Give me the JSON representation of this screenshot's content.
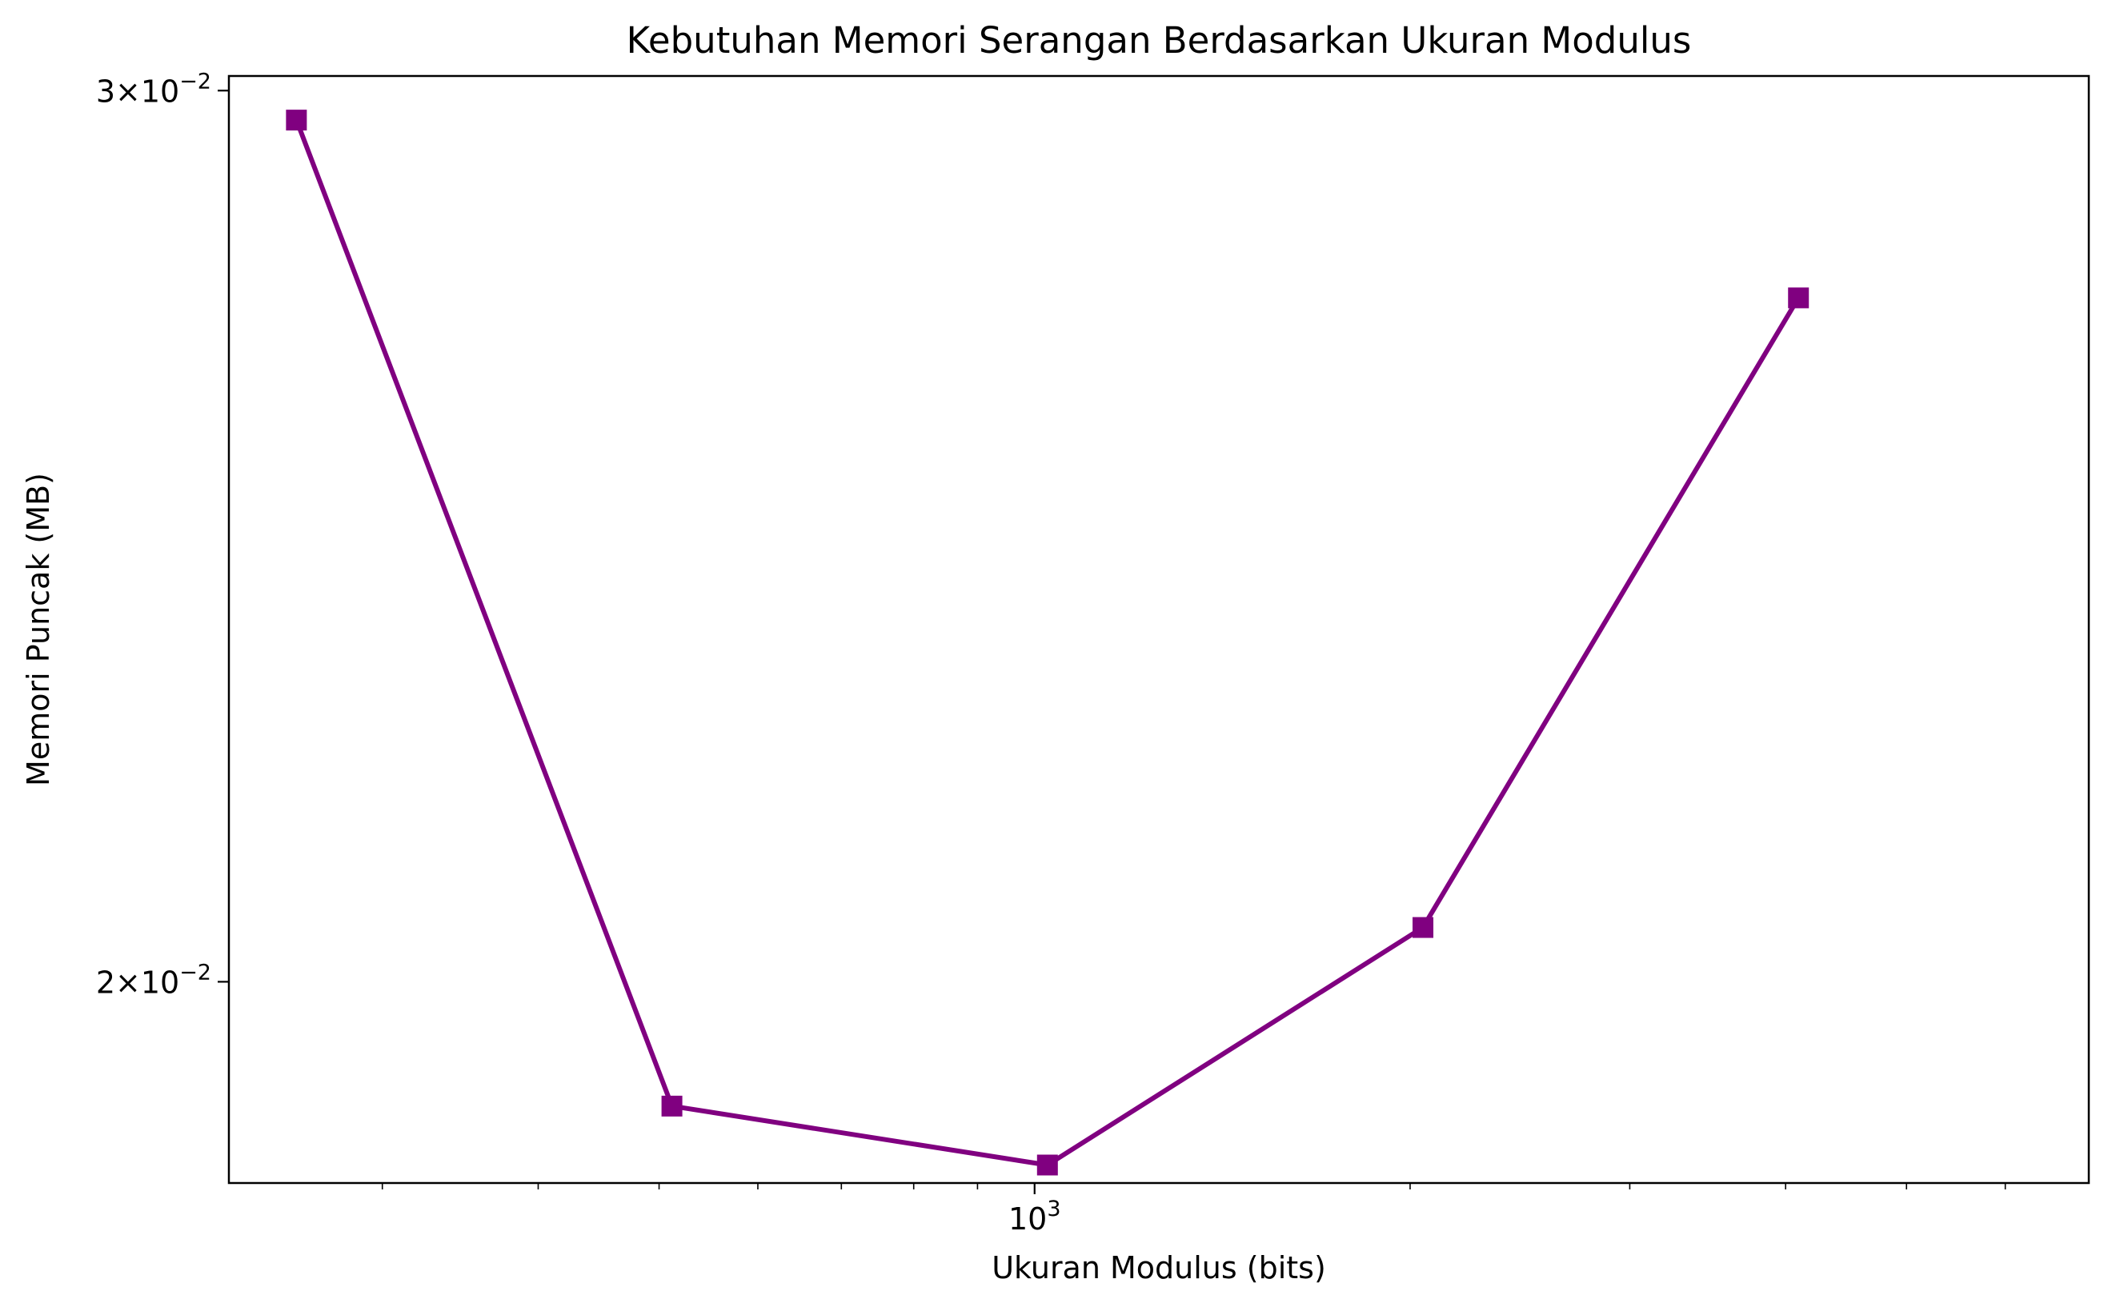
{
  "chart_data": {
    "type": "line",
    "title": "Kebutuhan Memori Serangan Berdasarkan Ukuran Modulus",
    "xlabel": "Ukuran Modulus (bits)",
    "ylabel": "Memori Puncak (MB)",
    "x_scale": "log",
    "y_scale": "log",
    "xlim": [
      226,
      7000
    ],
    "ylim": [
      0.01825,
      0.0302
    ],
    "x_ticks": [
      {
        "value": 1000,
        "base": "10",
        "exp": "3"
      }
    ],
    "y_ticks": [
      {
        "value": 0.02,
        "mantissa": "2",
        "times": "×",
        "base": "10",
        "exp": "−2"
      },
      {
        "value": 0.03,
        "mantissa": "3",
        "times": "×",
        "base": "10",
        "exp": "−2"
      }
    ],
    "x_minor_ticks": [
      300,
      400,
      500,
      600,
      700,
      800,
      900,
      2000,
      3000,
      4000,
      5000,
      6000
    ],
    "grid": false,
    "series": [
      {
        "color": "#800080",
        "marker": "square",
        "x": [
          256,
          512,
          1024,
          2048,
          4096
        ],
        "y": [
          0.0296,
          0.0189,
          0.0184,
          0.0205,
          0.0273
        ]
      }
    ]
  }
}
